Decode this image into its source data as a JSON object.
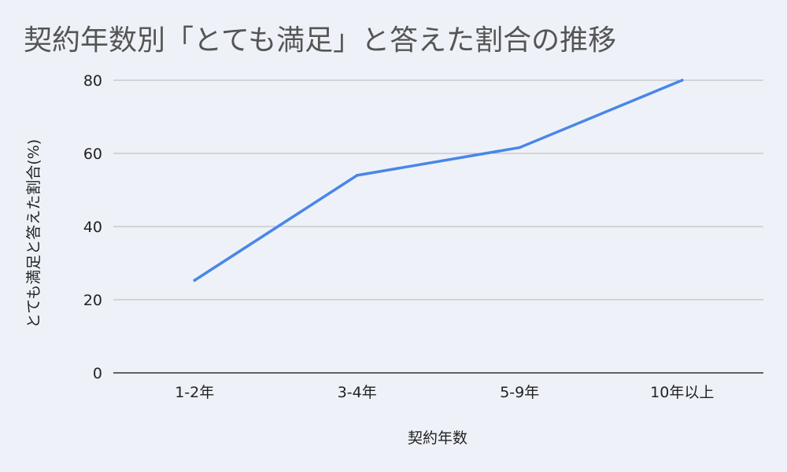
{
  "chart_data": {
    "type": "line",
    "title": "契約年数別「とても満足」と答えた割合の推移",
    "xlabel": "契約年数",
    "ylabel": "とても満足と答えた割合(%)",
    "categories": [
      "1-2年",
      "3-4年",
      "5-9年",
      "10年以上"
    ],
    "series": [
      {
        "values": [
          25.3,
          54,
          61.6,
          80
        ],
        "color": "#4a86e8"
      }
    ],
    "ylim": [
      0,
      80
    ],
    "yticks": [
      0,
      20,
      40,
      60,
      80
    ],
    "grid": true,
    "legend": "none"
  }
}
